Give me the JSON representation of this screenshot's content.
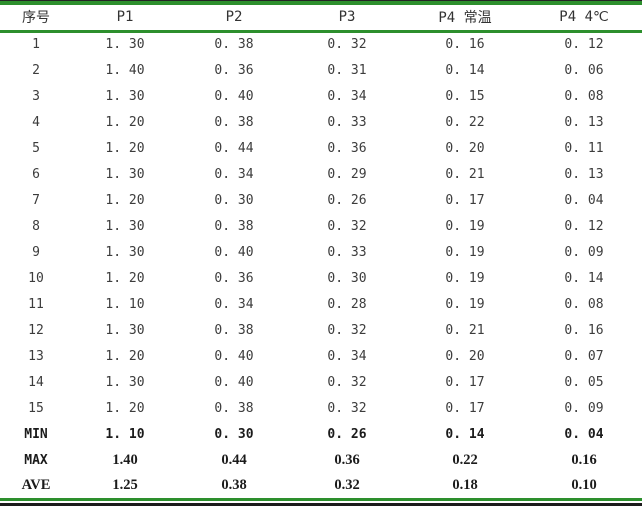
{
  "colors": {
    "rule_green": "#2d8f2d",
    "rule_black": "#1c1c1c",
    "text_regular": "#3c3c3c",
    "text_bold": "#1b1b1b"
  },
  "table": {
    "columns": [
      "序号",
      "P1",
      "P2",
      "P3",
      "P4 常温",
      "P4 4℃"
    ],
    "rows": [
      {
        "kind": "data",
        "label": "1",
        "values": [
          "1. 30",
          "0. 38",
          "0. 32",
          "0. 16",
          "0. 12"
        ]
      },
      {
        "kind": "data",
        "label": "2",
        "values": [
          "1. 40",
          "0. 36",
          "0. 31",
          "0. 14",
          "0. 06"
        ]
      },
      {
        "kind": "data",
        "label": "3",
        "values": [
          "1. 30",
          "0. 40",
          "0. 34",
          "0. 15",
          "0. 08"
        ]
      },
      {
        "kind": "data",
        "label": "4",
        "values": [
          "1. 20",
          "0. 38",
          "0. 33",
          "0. 22",
          "0. 13"
        ]
      },
      {
        "kind": "data",
        "label": "5",
        "values": [
          "1. 20",
          "0. 44",
          "0. 36",
          "0. 20",
          "0. 11"
        ]
      },
      {
        "kind": "data",
        "label": "6",
        "values": [
          "1. 30",
          "0. 34",
          "0. 29",
          "0. 21",
          "0. 13"
        ]
      },
      {
        "kind": "data",
        "label": "7",
        "values": [
          "1. 20",
          "0. 30",
          "0. 26",
          "0. 17",
          "0. 04"
        ]
      },
      {
        "kind": "data",
        "label": "8",
        "values": [
          "1. 30",
          "0. 38",
          "0. 32",
          "0. 19",
          "0. 12"
        ]
      },
      {
        "kind": "data",
        "label": "9",
        "values": [
          "1. 30",
          "0. 40",
          "0. 33",
          "0. 19",
          "0. 09"
        ]
      },
      {
        "kind": "data",
        "label": "10",
        "values": [
          "1. 20",
          "0. 36",
          "0. 30",
          "0. 19",
          "0. 14"
        ]
      },
      {
        "kind": "data",
        "label": "11",
        "values": [
          "1. 10",
          "0. 34",
          "0. 28",
          "0. 19",
          "0. 08"
        ]
      },
      {
        "kind": "data",
        "label": "12",
        "values": [
          "1. 30",
          "0. 38",
          "0. 32",
          "0. 21",
          "0. 16"
        ]
      },
      {
        "kind": "data",
        "label": "13",
        "values": [
          "1. 20",
          "0. 40",
          "0. 34",
          "0. 20",
          "0. 07"
        ]
      },
      {
        "kind": "data",
        "label": "14",
        "values": [
          "1. 30",
          "0. 40",
          "0. 32",
          "0. 17",
          "0. 05"
        ]
      },
      {
        "kind": "data",
        "label": "15",
        "values": [
          "1. 20",
          "0. 38",
          "0. 32",
          "0. 17",
          "0. 09"
        ]
      },
      {
        "kind": "min",
        "label": "MIN",
        "values": [
          "1. 10",
          "0. 30",
          "0. 26",
          "0. 14",
          "0. 04"
        ]
      },
      {
        "kind": "max",
        "label": "MAX",
        "values": [
          "1.40",
          "0.44",
          "0.36",
          "0.22",
          "0.16"
        ]
      },
      {
        "kind": "ave",
        "label": "AVE",
        "values": [
          "1.25",
          "0.38",
          "0.32",
          "0.18",
          "0.10"
        ]
      }
    ]
  },
  "chart_data": {
    "type": "table",
    "title": "",
    "row_header_label": "序号",
    "x": [
      1,
      2,
      3,
      4,
      5,
      6,
      7,
      8,
      9,
      10,
      11,
      12,
      13,
      14,
      15
    ],
    "series": [
      {
        "name": "P1",
        "values": [
          1.3,
          1.4,
          1.3,
          1.2,
          1.2,
          1.3,
          1.2,
          1.3,
          1.3,
          1.2,
          1.1,
          1.3,
          1.2,
          1.3,
          1.2
        ],
        "min": 1.1,
        "max": 1.4,
        "ave": 1.25
      },
      {
        "name": "P2",
        "values": [
          0.38,
          0.36,
          0.4,
          0.38,
          0.44,
          0.34,
          0.3,
          0.38,
          0.4,
          0.36,
          0.34,
          0.38,
          0.4,
          0.4,
          0.38
        ],
        "min": 0.3,
        "max": 0.44,
        "ave": 0.38
      },
      {
        "name": "P3",
        "values": [
          0.32,
          0.31,
          0.34,
          0.33,
          0.36,
          0.29,
          0.26,
          0.32,
          0.33,
          0.3,
          0.28,
          0.32,
          0.34,
          0.32,
          0.32
        ],
        "min": 0.26,
        "max": 0.36,
        "ave": 0.32
      },
      {
        "name": "P4 常温",
        "values": [
          0.16,
          0.14,
          0.15,
          0.22,
          0.2,
          0.21,
          0.17,
          0.19,
          0.19,
          0.19,
          0.19,
          0.21,
          0.2,
          0.17,
          0.17
        ],
        "min": 0.14,
        "max": 0.22,
        "ave": 0.18
      },
      {
        "name": "P4 4℃",
        "values": [
          0.12,
          0.06,
          0.08,
          0.13,
          0.11,
          0.13,
          0.04,
          0.12,
          0.09,
          0.14,
          0.08,
          0.16,
          0.07,
          0.05,
          0.09
        ],
        "min": 0.04,
        "max": 0.16,
        "ave": 0.1
      }
    ],
    "summary_row_labels": [
      "MIN",
      "MAX",
      "AVE"
    ]
  }
}
